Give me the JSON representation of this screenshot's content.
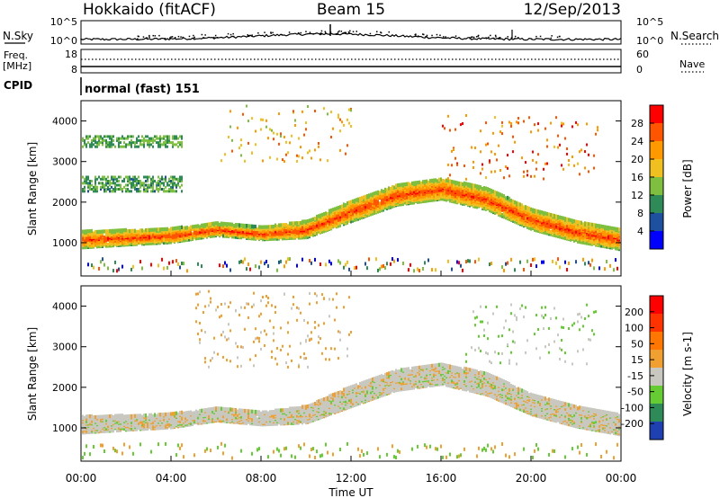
{
  "header": {
    "station": "Hokkaido (fitACF)",
    "beam": "Beam 15",
    "date": "12/Sep/2013"
  },
  "noise_panel": {
    "left_label": "N.Sky",
    "right_label": "N.Search",
    "left_ticks": [
      "10^5",
      "10^0"
    ],
    "right_ticks": [
      "10^5",
      "10^0"
    ]
  },
  "freq_panel": {
    "left_label_line1": "Freq.",
    "left_label_line2": "[MHz]",
    "right_label": "Nave",
    "left_ticks": [
      "18",
      "8"
    ],
    "right_ticks": [
      "60",
      "0"
    ]
  },
  "cpid": {
    "label": "CPID",
    "value": "normal (fast) 151"
  },
  "chart_data": [
    {
      "type": "heatmap",
      "title": "Power",
      "ylabel": "Slant Range [km]",
      "ylim": [
        180,
        4500
      ],
      "yticks": [
        1000,
        2000,
        3000,
        4000
      ],
      "xlabel": "Time UT",
      "xlim": [
        0,
        24
      ],
      "colorbar": {
        "label": "Power [dB]",
        "range": [
          0,
          32
        ],
        "ticks": [
          "4",
          "8",
          "12",
          "16",
          "20",
          "24",
          "28"
        ],
        "colors": [
          "#0000ff",
          "#1e50a0",
          "#2e8b57",
          "#7fbf3f",
          "#f0c020",
          "#ff9900",
          "#ff5500",
          "#ff0000"
        ]
      },
      "main_echo_band_km": {
        "hours": [
          0,
          2,
          4,
          6,
          8,
          10,
          12,
          14,
          16,
          18,
          20,
          22,
          24
        ],
        "center": [
          1100,
          1150,
          1200,
          1350,
          1250,
          1350,
          1800,
          2200,
          2350,
          2100,
          1600,
          1300,
          1100
        ],
        "half_width": [
          200,
          180,
          170,
          150,
          150,
          200,
          250,
          250,
          250,
          260,
          250,
          250,
          250
        ]
      }
    },
    {
      "type": "heatmap",
      "title": "Velocity",
      "ylabel": "Slant Range [km]",
      "ylim": [
        180,
        4500
      ],
      "yticks": [
        1000,
        2000,
        3000,
        4000
      ],
      "xlabel": "Time UT",
      "xlim": [
        0,
        24
      ],
      "colorbar": {
        "label": "Velocity [m s-1]",
        "range": [
          -250,
          250
        ],
        "ticks": [
          "200",
          "100",
          "50",
          "15",
          "-15",
          "-50",
          "-100",
          "-200"
        ],
        "colors": [
          "#1e40b0",
          "#2e8b57",
          "#66cc33",
          "#c8c8c0",
          "#f0a030",
          "#ff7700",
          "#ff3300",
          "#ff0000"
        ]
      }
    }
  ],
  "x_axis": {
    "label": "Time UT",
    "ticks": [
      "00:00",
      "04:00",
      "08:00",
      "12:00",
      "16:00",
      "20:00",
      "00:00"
    ]
  }
}
